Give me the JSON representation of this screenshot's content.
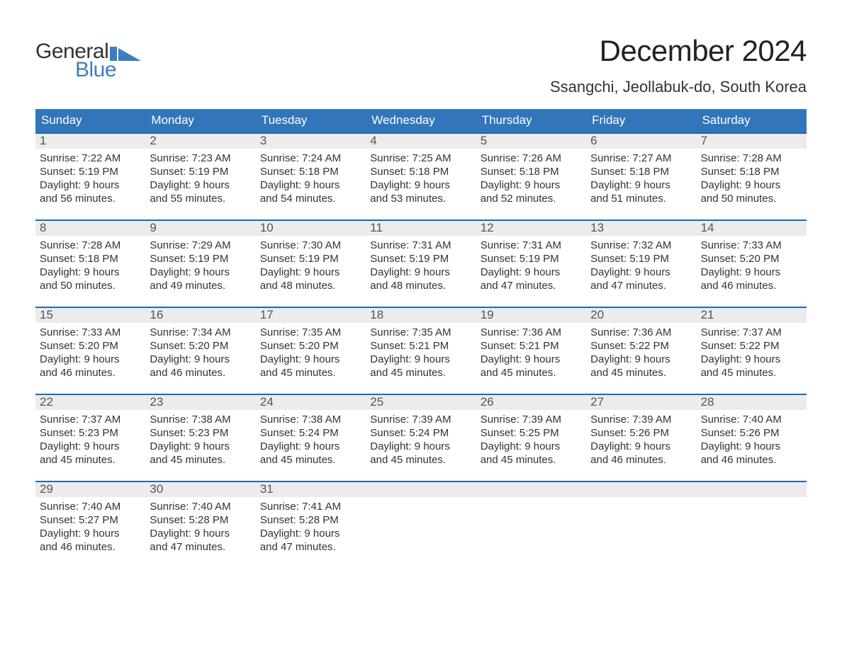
{
  "brand": {
    "word1": "General",
    "word2": "Blue",
    "mark_color": "#3b7ec0"
  },
  "title": "December 2024",
  "location": "Ssangchi, Jeollabuk-do, South Korea",
  "colors": {
    "header_bg": "#3275bb",
    "week_rule": "#1f6bb0",
    "band_bg": "#ececec",
    "text": "#333333",
    "bg": "#ffffff"
  },
  "day_names": [
    "Sunday",
    "Monday",
    "Tuesday",
    "Wednesday",
    "Thursday",
    "Friday",
    "Saturday"
  ],
  "weeks": [
    [
      {
        "n": "1",
        "sr": "7:22 AM",
        "ss": "5:19 PM",
        "dl": "9 hours and 56 minutes."
      },
      {
        "n": "2",
        "sr": "7:23 AM",
        "ss": "5:19 PM",
        "dl": "9 hours and 55 minutes."
      },
      {
        "n": "3",
        "sr": "7:24 AM",
        "ss": "5:18 PM",
        "dl": "9 hours and 54 minutes."
      },
      {
        "n": "4",
        "sr": "7:25 AM",
        "ss": "5:18 PM",
        "dl": "9 hours and 53 minutes."
      },
      {
        "n": "5",
        "sr": "7:26 AM",
        "ss": "5:18 PM",
        "dl": "9 hours and 52 minutes."
      },
      {
        "n": "6",
        "sr": "7:27 AM",
        "ss": "5:18 PM",
        "dl": "9 hours and 51 minutes."
      },
      {
        "n": "7",
        "sr": "7:28 AM",
        "ss": "5:18 PM",
        "dl": "9 hours and 50 minutes."
      }
    ],
    [
      {
        "n": "8",
        "sr": "7:28 AM",
        "ss": "5:18 PM",
        "dl": "9 hours and 50 minutes."
      },
      {
        "n": "9",
        "sr": "7:29 AM",
        "ss": "5:19 PM",
        "dl": "9 hours and 49 minutes."
      },
      {
        "n": "10",
        "sr": "7:30 AM",
        "ss": "5:19 PM",
        "dl": "9 hours and 48 minutes."
      },
      {
        "n": "11",
        "sr": "7:31 AM",
        "ss": "5:19 PM",
        "dl": "9 hours and 48 minutes."
      },
      {
        "n": "12",
        "sr": "7:31 AM",
        "ss": "5:19 PM",
        "dl": "9 hours and 47 minutes."
      },
      {
        "n": "13",
        "sr": "7:32 AM",
        "ss": "5:19 PM",
        "dl": "9 hours and 47 minutes."
      },
      {
        "n": "14",
        "sr": "7:33 AM",
        "ss": "5:20 PM",
        "dl": "9 hours and 46 minutes."
      }
    ],
    [
      {
        "n": "15",
        "sr": "7:33 AM",
        "ss": "5:20 PM",
        "dl": "9 hours and 46 minutes."
      },
      {
        "n": "16",
        "sr": "7:34 AM",
        "ss": "5:20 PM",
        "dl": "9 hours and 46 minutes."
      },
      {
        "n": "17",
        "sr": "7:35 AM",
        "ss": "5:20 PM",
        "dl": "9 hours and 45 minutes."
      },
      {
        "n": "18",
        "sr": "7:35 AM",
        "ss": "5:21 PM",
        "dl": "9 hours and 45 minutes."
      },
      {
        "n": "19",
        "sr": "7:36 AM",
        "ss": "5:21 PM",
        "dl": "9 hours and 45 minutes."
      },
      {
        "n": "20",
        "sr": "7:36 AM",
        "ss": "5:22 PM",
        "dl": "9 hours and 45 minutes."
      },
      {
        "n": "21",
        "sr": "7:37 AM",
        "ss": "5:22 PM",
        "dl": "9 hours and 45 minutes."
      }
    ],
    [
      {
        "n": "22",
        "sr": "7:37 AM",
        "ss": "5:23 PM",
        "dl": "9 hours and 45 minutes."
      },
      {
        "n": "23",
        "sr": "7:38 AM",
        "ss": "5:23 PM",
        "dl": "9 hours and 45 minutes."
      },
      {
        "n": "24",
        "sr": "7:38 AM",
        "ss": "5:24 PM",
        "dl": "9 hours and 45 minutes."
      },
      {
        "n": "25",
        "sr": "7:39 AM",
        "ss": "5:24 PM",
        "dl": "9 hours and 45 minutes."
      },
      {
        "n": "26",
        "sr": "7:39 AM",
        "ss": "5:25 PM",
        "dl": "9 hours and 45 minutes."
      },
      {
        "n": "27",
        "sr": "7:39 AM",
        "ss": "5:26 PM",
        "dl": "9 hours and 46 minutes."
      },
      {
        "n": "28",
        "sr": "7:40 AM",
        "ss": "5:26 PM",
        "dl": "9 hours and 46 minutes."
      }
    ],
    [
      {
        "n": "29",
        "sr": "7:40 AM",
        "ss": "5:27 PM",
        "dl": "9 hours and 46 minutes."
      },
      {
        "n": "30",
        "sr": "7:40 AM",
        "ss": "5:28 PM",
        "dl": "9 hours and 47 minutes."
      },
      {
        "n": "31",
        "sr": "7:41 AM",
        "ss": "5:28 PM",
        "dl": "9 hours and 47 minutes."
      },
      null,
      null,
      null,
      null
    ]
  ],
  "labels": {
    "sunrise": "Sunrise:",
    "sunset": "Sunset:",
    "daylight": "Daylight:"
  }
}
